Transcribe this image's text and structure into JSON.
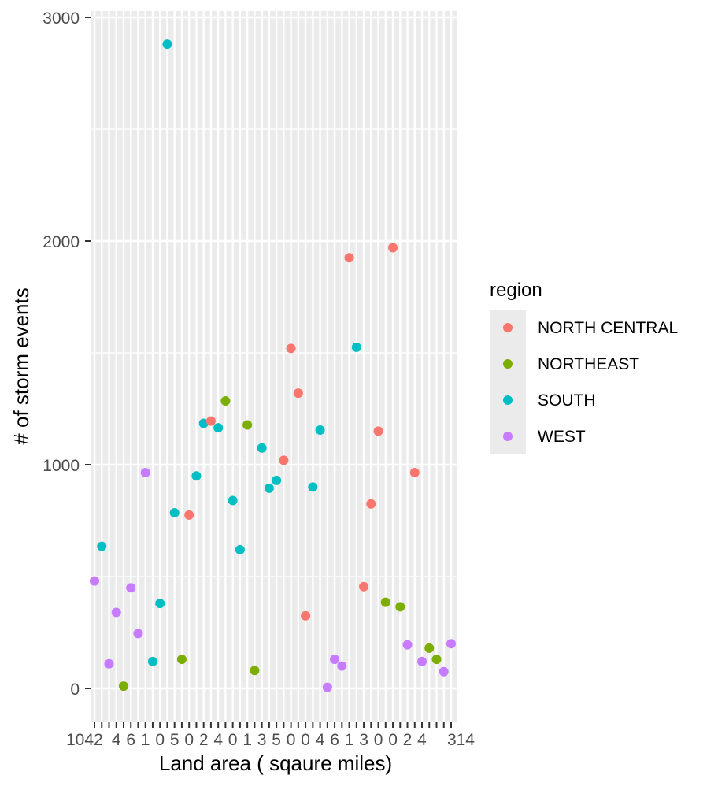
{
  "chart_data": {
    "type": "scatter",
    "xlabel": "Land area ( sqaure miles)",
    "ylabel": "# of storm events",
    "x_scale": "categorical",
    "x_category_count": 50,
    "x_tick_labels_visible_fragment": "1042",
    "x_tick_labels_trailing": "314",
    "y_ticks": [
      0,
      1000,
      2000,
      3000
    ],
    "ylim": [
      -120,
      3060
    ],
    "grid": true,
    "panel_background": "#EBEBEB",
    "legend": {
      "title": "region",
      "position": "right",
      "entries": [
        {
          "label": "NORTH CENTRAL",
          "color": "#F8766D"
        },
        {
          "label": "NORTHEAST",
          "color": "#7CAE00"
        },
        {
          "label": "SOUTH",
          "color": "#00BFC4"
        },
        {
          "label": "WEST",
          "color": "#C77CFF"
        }
      ]
    },
    "points": [
      {
        "x": 1,
        "y": 480,
        "region": "WEST"
      },
      {
        "x": 2,
        "y": 635,
        "region": "SOUTH"
      },
      {
        "x": 3,
        "y": 110,
        "region": "WEST"
      },
      {
        "x": 4,
        "y": 340,
        "region": "WEST"
      },
      {
        "x": 5,
        "y": 10,
        "region": "NORTHEAST"
      },
      {
        "x": 6,
        "y": 450,
        "region": "WEST"
      },
      {
        "x": 7,
        "y": 245,
        "region": "WEST"
      },
      {
        "x": 8,
        "y": 965,
        "region": "WEST"
      },
      {
        "x": 9,
        "y": 120,
        "region": "SOUTH"
      },
      {
        "x": 10,
        "y": 380,
        "region": "SOUTH"
      },
      {
        "x": 11,
        "y": 2880,
        "region": "SOUTH"
      },
      {
        "x": 12,
        "y": 785,
        "region": "SOUTH"
      },
      {
        "x": 13,
        "y": 130,
        "region": "NORTHEAST"
      },
      {
        "x": 14,
        "y": 775,
        "region": "NORTH CENTRAL"
      },
      {
        "x": 15,
        "y": 950,
        "region": "SOUTH"
      },
      {
        "x": 16,
        "y": 1185,
        "region": "SOUTH"
      },
      {
        "x": 17,
        "y": 1195,
        "region": "NORTH CENTRAL"
      },
      {
        "x": 18,
        "y": 1165,
        "region": "SOUTH"
      },
      {
        "x": 19,
        "y": 1285,
        "region": "NORTHEAST"
      },
      {
        "x": 20,
        "y": 840,
        "region": "SOUTH"
      },
      {
        "x": 21,
        "y": 620,
        "region": "SOUTH"
      },
      {
        "x": 22,
        "y": 1178,
        "region": "NORTHEAST"
      },
      {
        "x": 23,
        "y": 80,
        "region": "NORTHEAST"
      },
      {
        "x": 24,
        "y": 1075,
        "region": "SOUTH"
      },
      {
        "x": 25,
        "y": 895,
        "region": "SOUTH"
      },
      {
        "x": 26,
        "y": 930,
        "region": "SOUTH"
      },
      {
        "x": 27,
        "y": 1020,
        "region": "NORTH CENTRAL"
      },
      {
        "x": 28,
        "y": 1520,
        "region": "NORTH CENTRAL"
      },
      {
        "x": 29,
        "y": 1320,
        "region": "NORTH CENTRAL"
      },
      {
        "x": 30,
        "y": 325,
        "region": "NORTH CENTRAL"
      },
      {
        "x": 31,
        "y": 900,
        "region": "SOUTH"
      },
      {
        "x": 32,
        "y": 1155,
        "region": "SOUTH"
      },
      {
        "x": 33,
        "y": 5,
        "region": "WEST"
      },
      {
        "x": 34,
        "y": 130,
        "region": "WEST"
      },
      {
        "x": 35,
        "y": 100,
        "region": "WEST"
      },
      {
        "x": 36,
        "y": 1925,
        "region": "NORTH CENTRAL"
      },
      {
        "x": 37,
        "y": 1525,
        "region": "SOUTH"
      },
      {
        "x": 38,
        "y": 455,
        "region": "NORTH CENTRAL"
      },
      {
        "x": 39,
        "y": 825,
        "region": "NORTH CENTRAL"
      },
      {
        "x": 40,
        "y": 1150,
        "region": "NORTH CENTRAL"
      },
      {
        "x": 41,
        "y": 385,
        "region": "NORTHEAST"
      },
      {
        "x": 42,
        "y": 1970,
        "region": "NORTH CENTRAL"
      },
      {
        "x": 43,
        "y": 365,
        "region": "NORTHEAST"
      },
      {
        "x": 44,
        "y": 195,
        "region": "WEST"
      },
      {
        "x": 45,
        "y": 965,
        "region": "NORTH CENTRAL"
      },
      {
        "x": 46,
        "y": 120,
        "region": "WEST"
      },
      {
        "x": 47,
        "y": 180,
        "region": "NORTHEAST"
      },
      {
        "x": 48,
        "y": 130,
        "region": "NORTHEAST"
      },
      {
        "x": 49,
        "y": 75,
        "region": "WEST"
      },
      {
        "x": 50,
        "y": 200,
        "region": "WEST"
      }
    ]
  }
}
